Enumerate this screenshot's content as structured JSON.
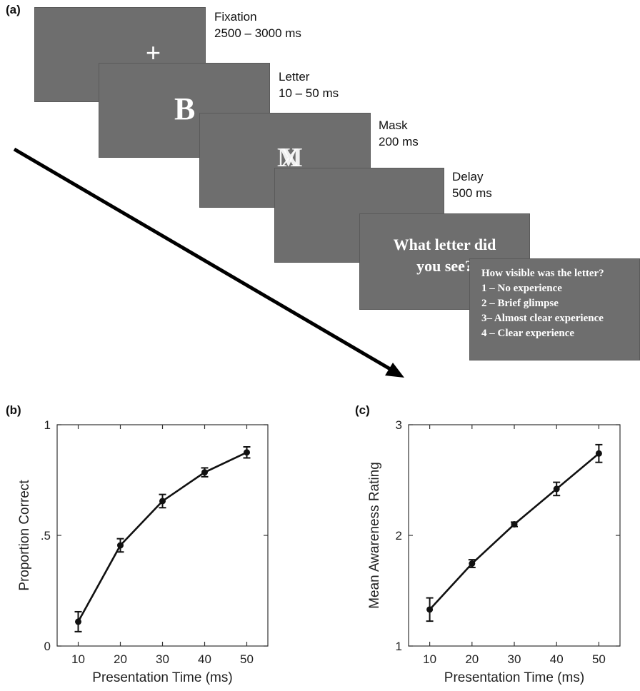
{
  "panels": {
    "a": "(a)",
    "b": "(b)",
    "c": "(c)"
  },
  "sequence": {
    "fixation": {
      "name": "Fixation",
      "duration": "2500 – 3000 ms",
      "stimulus": "+"
    },
    "letter": {
      "name": "Letter",
      "duration": "10 – 50 ms",
      "stimulus": "B"
    },
    "mask": {
      "name": "Mask",
      "duration": "200 ms",
      "stimulus_a": "M",
      "stimulus_b": "X"
    },
    "delay": {
      "name": "Delay",
      "duration": "500 ms"
    },
    "question": {
      "line1": "What letter did",
      "line2": "you see?"
    },
    "rating": {
      "title": "How visible  was the letter?",
      "options": [
        "1 – No experience",
        "2 – Brief glimpse",
        "3– Almost clear experience",
        "4 – Clear experience"
      ]
    }
  },
  "chart_data": [
    {
      "type": "line",
      "xlabel": "Presentation Time (ms)",
      "ylabel": "Proportion Correct",
      "x": [
        10,
        20,
        30,
        40,
        50
      ],
      "xticks": [
        "10",
        "20",
        "30",
        "40",
        "50"
      ],
      "xlim": [
        5,
        55
      ],
      "ylim": [
        0,
        1
      ],
      "yticks": [
        0,
        0.5,
        1
      ],
      "ytick_labels": [
        "0",
        ".5",
        "1"
      ],
      "series": [
        {
          "values": [
            0.11,
            0.455,
            0.655,
            0.785,
            0.875
          ],
          "errors": [
            0.045,
            0.03,
            0.03,
            0.02,
            0.025
          ]
        }
      ],
      "grid": false
    },
    {
      "type": "line",
      "xlabel": "Presentation Time (ms)",
      "ylabel": "Mean Awareness Rating",
      "x": [
        10,
        20,
        30,
        40,
        50
      ],
      "xticks": [
        "10",
        "20",
        "30",
        "40",
        "50"
      ],
      "xlim": [
        5,
        55
      ],
      "ylim": [
        1,
        3
      ],
      "yticks": [
        1,
        2,
        3
      ],
      "ytick_labels": [
        "1",
        "2",
        "3"
      ],
      "series": [
        {
          "values": [
            1.33,
            1.745,
            2.1,
            2.42,
            2.74
          ],
          "errors": [
            0.105,
            0.035,
            0.02,
            0.06,
            0.08
          ]
        }
      ],
      "grid": false
    }
  ]
}
